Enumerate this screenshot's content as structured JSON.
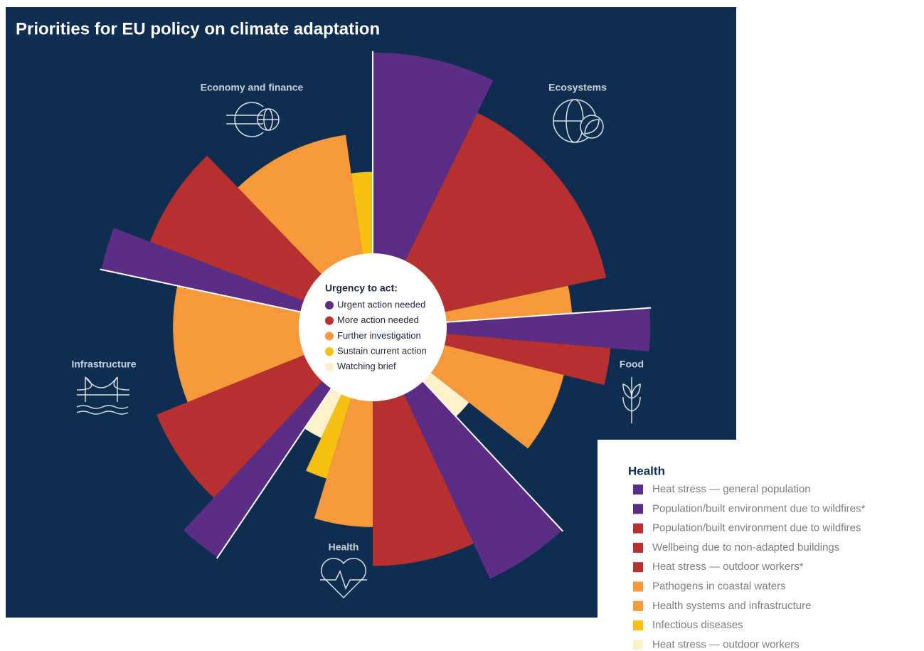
{
  "chart_data": {
    "type": "polar-area",
    "title": "Priorities for EU policy on climate adaptation",
    "rlim": [
      0,
      100
    ],
    "legend_title": "Urgency to act:",
    "urgency": [
      {
        "name": "Urgent action needed",
        "color": "#5c2d84"
      },
      {
        "name": "More action needed",
        "color": "#b5302f"
      },
      {
        "name": "Further investigation",
        "color": "#f5993a"
      },
      {
        "name": "Sustain current action",
        "color": "#f6c012"
      },
      {
        "name": "Watching brief",
        "color": "#fdf1c9"
      }
    ],
    "groups": [
      "Ecosystems",
      "Food",
      "Health",
      "Infrastructure",
      "Economy and finance"
    ],
    "sectors": [
      {
        "urgency": 0,
        "span": 26,
        "value": 99
      },
      {
        "urgency": 1,
        "span": 52,
        "value": 86
      },
      {
        "urgency": 2,
        "span": 8,
        "value": 72
      },
      {
        "urgency": 0,
        "span": 9,
        "value": 100
      },
      {
        "urgency": 1,
        "span": 9,
        "value": 86
      },
      {
        "urgency": 2,
        "span": 24,
        "value": 71
      },
      {
        "urgency": 4,
        "span": 9,
        "value": 44
      },
      {
        "urgency": 0,
        "span": 18,
        "value": 100
      },
      {
        "urgency": 1,
        "span": 25,
        "value": 86
      },
      {
        "urgency": 2,
        "span": 17,
        "value": 72
      },
      {
        "urgency": 3,
        "span": 8,
        "value": 57
      },
      {
        "urgency": 4,
        "span": 9,
        "value": 44
      },
      {
        "urgency": 0,
        "span": 9,
        "value": 100
      },
      {
        "urgency": 1,
        "span": 25,
        "value": 84
      },
      {
        "urgency": 2,
        "span": 34,
        "value": 72
      },
      {
        "urgency": 0,
        "span": 9,
        "value": 100
      },
      {
        "urgency": 1,
        "span": 25,
        "value": 86
      },
      {
        "urgency": 2,
        "span": 36,
        "value": 70
      },
      {
        "urgency": 3,
        "span": 8,
        "value": 56
      }
    ],
    "detail": {
      "title": "Health",
      "items": [
        {
          "name": "Heat stress — general population",
          "urgency": 0
        },
        {
          "name": "Population/built environment due to wildfires*",
          "urgency": 0
        },
        {
          "name": "Population/built environment due to wildfires",
          "urgency": 1
        },
        {
          "name": "Wellbeing due to non-adapted buildings",
          "urgency": 1
        },
        {
          "name": "Heat stress — outdoor workers*",
          "urgency": 1
        },
        {
          "name": "Pathogens in coastal waters",
          "urgency": 2
        },
        {
          "name": "Health systems and infrastructure",
          "urgency": 2
        },
        {
          "name": "Infectious diseases",
          "urgency": 3
        },
        {
          "name": "Heat stress — outdoor workers",
          "urgency": 4
        }
      ]
    }
  }
}
